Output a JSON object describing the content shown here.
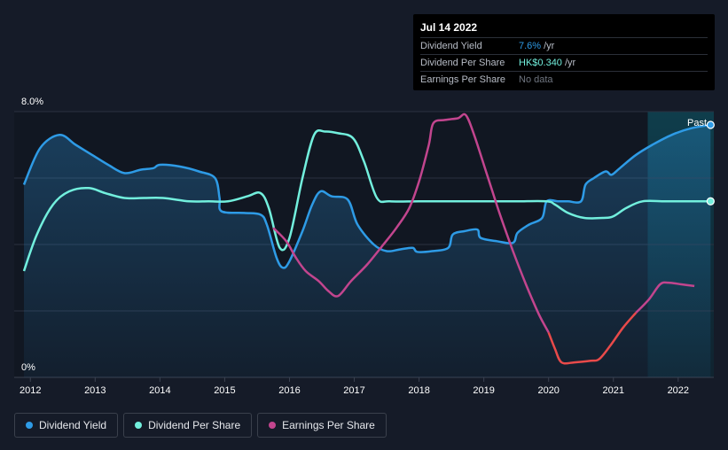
{
  "tooltip": {
    "date": "Jul 14 2022",
    "rows": [
      {
        "label": "Dividend Yield",
        "value": "7.6%",
        "unit": "/yr",
        "color": "#2e9be6"
      },
      {
        "label": "Dividend Per Share",
        "value": "HK$0.340",
        "unit": "/yr",
        "color": "#72efdd"
      },
      {
        "label": "Earnings Per Share",
        "value": "No data",
        "unit": "",
        "color": "#6f7580"
      }
    ]
  },
  "legend": [
    {
      "label": "Dividend Yield",
      "color": "#2e9be6"
    },
    {
      "label": "Dividend Per Share",
      "color": "#72efdd"
    },
    {
      "label": "Earnings Per Share",
      "color": "#c2458e"
    }
  ],
  "chart_data": {
    "type": "line",
    "y_top_label": "8.0%",
    "y_bottom_label": "0%",
    "ylim": [
      0,
      8.0
    ],
    "xlim": [
      2011.75,
      2022.55
    ],
    "x_ticks": [
      "2012",
      "2013",
      "2014",
      "2015",
      "2016",
      "2017",
      "2018",
      "2019",
      "2020",
      "2021",
      "2022"
    ],
    "past_label": "Past",
    "past_start": 2021.53,
    "colors": {
      "yield": "#2e9be6",
      "dps": "#72efdd",
      "eps_pos": "#c2458e",
      "eps_neg": "#e84a4a"
    },
    "series": [
      {
        "name": "Dividend Yield",
        "unit": "%",
        "points": [
          [
            2011.9,
            5.8
          ],
          [
            2012.15,
            6.9
          ],
          [
            2012.45,
            7.3
          ],
          [
            2012.7,
            7.0
          ],
          [
            2012.95,
            6.7
          ],
          [
            2013.2,
            6.4
          ],
          [
            2013.45,
            6.15
          ],
          [
            2013.7,
            6.25
          ],
          [
            2013.9,
            6.3
          ],
          [
            2014.0,
            6.4
          ],
          [
            2014.3,
            6.35
          ],
          [
            2014.6,
            6.2
          ],
          [
            2014.85,
            6.0
          ],
          [
            2014.92,
            5.4
          ],
          [
            2014.95,
            5.0
          ],
          [
            2015.3,
            4.95
          ],
          [
            2015.55,
            4.9
          ],
          [
            2015.65,
            4.6
          ],
          [
            2015.8,
            3.6
          ],
          [
            2015.9,
            3.3
          ],
          [
            2016.0,
            3.5
          ],
          [
            2016.2,
            4.4
          ],
          [
            2016.35,
            5.2
          ],
          [
            2016.48,
            5.6
          ],
          [
            2016.65,
            5.45
          ],
          [
            2016.9,
            5.35
          ],
          [
            2017.05,
            4.6
          ],
          [
            2017.3,
            4.0
          ],
          [
            2017.5,
            3.8
          ],
          [
            2017.7,
            3.85
          ],
          [
            2017.9,
            3.9
          ],
          [
            2017.97,
            3.78
          ],
          [
            2018.2,
            3.8
          ],
          [
            2018.45,
            3.9
          ],
          [
            2018.52,
            4.3
          ],
          [
            2018.7,
            4.4
          ],
          [
            2018.9,
            4.45
          ],
          [
            2018.95,
            4.2
          ],
          [
            2019.2,
            4.1
          ],
          [
            2019.45,
            4.05
          ],
          [
            2019.52,
            4.35
          ],
          [
            2019.7,
            4.6
          ],
          [
            2019.9,
            4.8
          ],
          [
            2019.97,
            5.3
          ],
          [
            2020.15,
            5.3
          ],
          [
            2020.3,
            5.3
          ],
          [
            2020.5,
            5.3
          ],
          [
            2020.57,
            5.8
          ],
          [
            2020.7,
            6.0
          ],
          [
            2020.88,
            6.2
          ],
          [
            2020.97,
            6.1
          ],
          [
            2021.1,
            6.3
          ],
          [
            2021.35,
            6.7
          ],
          [
            2021.6,
            7.0
          ],
          [
            2021.9,
            7.3
          ],
          [
            2022.2,
            7.5
          ],
          [
            2022.5,
            7.6
          ]
        ]
      },
      {
        "name": "Dividend Per Share",
        "unit": "HK$",
        "points": [
          [
            2011.9,
            3.2
          ],
          [
            2012.1,
            4.3
          ],
          [
            2012.35,
            5.2
          ],
          [
            2012.6,
            5.6
          ],
          [
            2012.9,
            5.7
          ],
          [
            2013.15,
            5.55
          ],
          [
            2013.45,
            5.4
          ],
          [
            2013.75,
            5.4
          ],
          [
            2014.05,
            5.4
          ],
          [
            2014.45,
            5.3
          ],
          [
            2014.75,
            5.3
          ],
          [
            2015.05,
            5.3
          ],
          [
            2015.35,
            5.45
          ],
          [
            2015.55,
            5.55
          ],
          [
            2015.68,
            5.1
          ],
          [
            2015.85,
            3.9
          ],
          [
            2016.0,
            4.2
          ],
          [
            2016.2,
            6.0
          ],
          [
            2016.38,
            7.3
          ],
          [
            2016.55,
            7.4
          ],
          [
            2016.75,
            7.35
          ],
          [
            2016.98,
            7.2
          ],
          [
            2017.15,
            6.5
          ],
          [
            2017.35,
            5.4
          ],
          [
            2017.55,
            5.3
          ],
          [
            2018.0,
            5.3
          ],
          [
            2018.5,
            5.3
          ],
          [
            2019.0,
            5.3
          ],
          [
            2019.5,
            5.3
          ],
          [
            2019.97,
            5.3
          ],
          [
            2020.1,
            5.2
          ],
          [
            2020.3,
            4.95
          ],
          [
            2020.55,
            4.8
          ],
          [
            2020.85,
            4.8
          ],
          [
            2021.0,
            4.85
          ],
          [
            2021.2,
            5.1
          ],
          [
            2021.45,
            5.3
          ],
          [
            2021.8,
            5.3
          ],
          [
            2022.2,
            5.3
          ],
          [
            2022.5,
            5.3
          ]
        ]
      },
      {
        "name": "Earnings Per Share",
        "unit": "HK$",
        "points": [
          [
            2015.75,
            4.5
          ],
          [
            2015.95,
            4.1
          ],
          [
            2016.1,
            3.6
          ],
          [
            2016.25,
            3.2
          ],
          [
            2016.45,
            2.9
          ],
          [
            2016.6,
            2.6
          ],
          [
            2016.75,
            2.45
          ],
          [
            2016.95,
            2.9
          ],
          [
            2017.2,
            3.4
          ],
          [
            2017.45,
            4.0
          ],
          [
            2017.65,
            4.5
          ],
          [
            2017.85,
            5.1
          ],
          [
            2018.0,
            5.9
          ],
          [
            2018.15,
            7.0
          ],
          [
            2018.22,
            7.65
          ],
          [
            2018.4,
            7.75
          ],
          [
            2018.6,
            7.8
          ],
          [
            2018.72,
            7.9
          ],
          [
            2018.85,
            7.3
          ],
          [
            2019.05,
            6.1
          ],
          [
            2019.25,
            4.9
          ],
          [
            2019.45,
            3.8
          ],
          [
            2019.65,
            2.8
          ],
          [
            2019.85,
            1.9
          ],
          [
            2020.0,
            1.35
          ],
          [
            2020.1,
            0.85
          ],
          [
            2020.2,
            0.45
          ],
          [
            2020.4,
            0.45
          ],
          [
            2020.65,
            0.5
          ],
          [
            2020.78,
            0.55
          ],
          [
            2020.95,
            0.95
          ],
          [
            2021.15,
            1.5
          ],
          [
            2021.35,
            1.95
          ],
          [
            2021.55,
            2.35
          ],
          [
            2021.72,
            2.8
          ],
          [
            2021.85,
            2.85
          ],
          [
            2022.05,
            2.8
          ],
          [
            2022.25,
            2.75
          ]
        ]
      }
    ]
  }
}
